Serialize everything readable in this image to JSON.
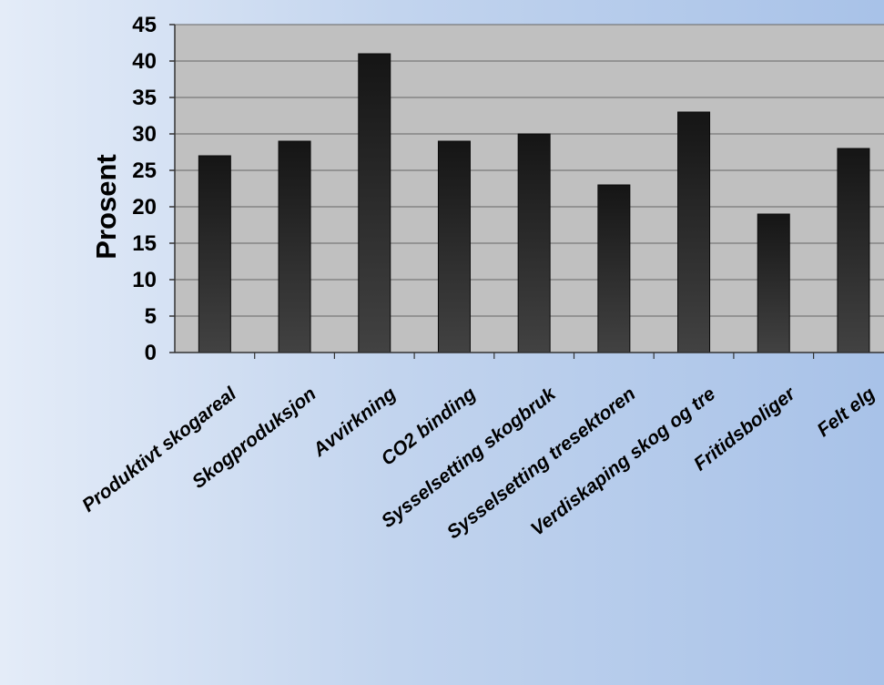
{
  "chart_data": {
    "type": "bar",
    "title": "",
    "xlabel": "",
    "ylabel": "Prosent",
    "ylim": [
      0,
      45
    ],
    "yticks": [
      0,
      5,
      10,
      15,
      20,
      25,
      30,
      35,
      40,
      45
    ],
    "grid": true,
    "legend": "none",
    "categories": [
      "Produktivt skogareal",
      "Skogproduksjon",
      "Avvirkning",
      "CO2 binding",
      "Sysselsetting skogbruk",
      "Sysselsetting tresektoren",
      "Verdiskaping skog og tre",
      "Fritidsboliger",
      "Felt elg"
    ],
    "values": [
      27,
      29,
      41,
      29,
      30,
      23,
      33,
      19,
      28
    ],
    "colors": {
      "plot_background": "#c0c0c0",
      "bar_top": "#151515",
      "bar_bottom": "#424242",
      "gridline": "#666666"
    }
  }
}
